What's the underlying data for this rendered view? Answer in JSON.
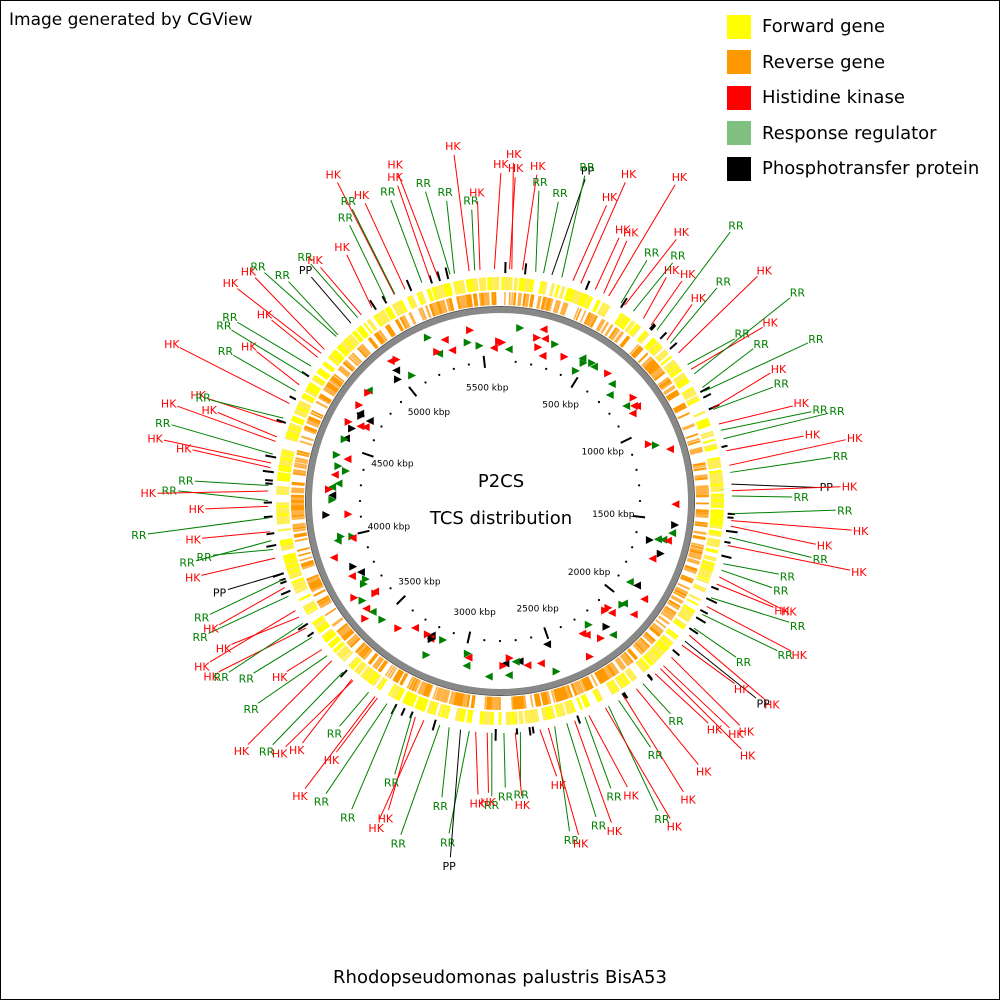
{
  "header": {
    "note": "Image generated by CGView"
  },
  "legend": {
    "items": [
      {
        "label": "Forward gene",
        "color": "#ffff00"
      },
      {
        "label": "Reverse gene",
        "color": "#ff9900"
      },
      {
        "label": "Histidine kinase",
        "color": "#ff0000"
      },
      {
        "label": "Response regulator",
        "color": "#80c080"
      },
      {
        "label": "Phosphotransfer protein",
        "color": "#000000"
      }
    ]
  },
  "map": {
    "title": "P2CS",
    "subtitle": "TCS distribution",
    "organism": "Rhodopseudomonas palustris BisA53",
    "genome_length_kbp": 5600,
    "ticks": [
      {
        "label": "500 kbp",
        "kbp": 500
      },
      {
        "label": "1000 kbp",
        "kbp": 1000
      },
      {
        "label": "1500 kbp",
        "kbp": 1500
      },
      {
        "label": "2000 kbp",
        "kbp": 2000
      },
      {
        "label": "2500 kbp",
        "kbp": 2500
      },
      {
        "label": "3000 kbp",
        "kbp": 3000
      },
      {
        "label": "3500 kbp",
        "kbp": 3500
      },
      {
        "label": "4000 kbp",
        "kbp": 4000
      },
      {
        "label": "4500 kbp",
        "kbp": 4500
      },
      {
        "label": "5000 kbp",
        "kbp": 5000
      },
      {
        "label": "5500 kbp",
        "kbp": 5500
      }
    ],
    "feature_labels": [
      {
        "text": "HK",
        "type": "HK"
      },
      {
        "text": "HK",
        "type": "HK"
      },
      {
        "text": "HK",
        "type": "HK"
      },
      {
        "text": "RR",
        "type": "RR"
      },
      {
        "text": "RR",
        "type": "RR"
      },
      {
        "text": "PP",
        "type": "PP"
      },
      {
        "text": "RR",
        "type": "RR"
      },
      {
        "text": "HK",
        "type": "HK"
      },
      {
        "text": "HK",
        "type": "HK"
      },
      {
        "text": "HK",
        "type": "HK"
      },
      {
        "text": "HK",
        "type": "HK"
      },
      {
        "text": "HK",
        "type": "HK"
      },
      {
        "text": "RR",
        "type": "RR"
      },
      {
        "text": "HK",
        "type": "HK"
      },
      {
        "text": "RR",
        "type": "RR"
      },
      {
        "text": "HK",
        "type": "HK"
      },
      {
        "text": "HK",
        "type": "HK"
      },
      {
        "text": "RR",
        "type": "RR"
      },
      {
        "text": "HK",
        "type": "HK"
      },
      {
        "text": "RR",
        "type": "RR"
      },
      {
        "text": "HK",
        "type": "HK"
      },
      {
        "text": "RR",
        "type": "RR"
      },
      {
        "text": "HK",
        "type": "HK"
      },
      {
        "text": "RR",
        "type": "RR"
      },
      {
        "text": "RR",
        "type": "RR"
      },
      {
        "text": "RR",
        "type": "RR"
      },
      {
        "text": "HK",
        "type": "HK"
      },
      {
        "text": "RR",
        "type": "RR"
      },
      {
        "text": "HK",
        "type": "HK"
      },
      {
        "text": "RR",
        "type": "RR"
      },
      {
        "text": "RR",
        "type": "RR"
      },
      {
        "text": "HK",
        "type": "HK"
      },
      {
        "text": "HK",
        "type": "HK"
      },
      {
        "text": "RR",
        "type": "RR"
      },
      {
        "text": "PP",
        "type": "PP"
      },
      {
        "text": "HK",
        "type": "HK"
      },
      {
        "text": "RR",
        "type": "RR"
      },
      {
        "text": "RR",
        "type": "RR"
      },
      {
        "text": "HK",
        "type": "HK"
      },
      {
        "text": "HK",
        "type": "HK"
      },
      {
        "text": "RR",
        "type": "RR"
      },
      {
        "text": "HK",
        "type": "HK"
      },
      {
        "text": "RR",
        "type": "RR"
      },
      {
        "text": "RR",
        "type": "RR"
      },
      {
        "text": "HK",
        "type": "HK"
      },
      {
        "text": "HK",
        "type": "HK"
      },
      {
        "text": "RR",
        "type": "RR"
      },
      {
        "text": "HK",
        "type": "HK"
      },
      {
        "text": "RR",
        "type": "RR"
      },
      {
        "text": "RR",
        "type": "RR"
      },
      {
        "text": "HK",
        "type": "HK"
      },
      {
        "text": "PP",
        "type": "PP"
      },
      {
        "text": "HK",
        "type": "HK"
      },
      {
        "text": "HK",
        "type": "HK"
      },
      {
        "text": "HK",
        "type": "HK"
      },
      {
        "text": "HK",
        "type": "HK"
      },
      {
        "text": "HK",
        "type": "HK"
      },
      {
        "text": "RR",
        "type": "RR"
      },
      {
        "text": "HK",
        "type": "HK"
      },
      {
        "text": "HK",
        "type": "HK"
      },
      {
        "text": "RR",
        "type": "RR"
      },
      {
        "text": "RR",
        "type": "RR"
      },
      {
        "text": "HK",
        "type": "HK"
      },
      {
        "text": "HK",
        "type": "HK"
      },
      {
        "text": "RR",
        "type": "RR"
      },
      {
        "text": "HK",
        "type": "HK"
      },
      {
        "text": "RR",
        "type": "RR"
      },
      {
        "text": "RR",
        "type": "RR"
      },
      {
        "text": "HK",
        "type": "HK"
      },
      {
        "text": "HK",
        "type": "HK"
      },
      {
        "text": "RR",
        "type": "RR"
      },
      {
        "text": "HK",
        "type": "HK"
      },
      {
        "text": "RR",
        "type": "RR"
      },
      {
        "text": "RR",
        "type": "RR"
      },
      {
        "text": "HK",
        "type": "HK"
      },
      {
        "text": "HK",
        "type": "HK"
      },
      {
        "text": "RR",
        "type": "RR"
      },
      {
        "text": "PP",
        "type": "PP"
      },
      {
        "text": "RR",
        "type": "RR"
      },
      {
        "text": "RR",
        "type": "RR"
      },
      {
        "text": "HK",
        "type": "HK"
      },
      {
        "text": "HK",
        "type": "HK"
      },
      {
        "text": "RR",
        "type": "RR"
      },
      {
        "text": "RR",
        "type": "RR"
      },
      {
        "text": "RR",
        "type": "RR"
      },
      {
        "text": "HK",
        "type": "HK"
      },
      {
        "text": "HK",
        "type": "HK"
      },
      {
        "text": "RR",
        "type": "RR"
      },
      {
        "text": "HK",
        "type": "HK"
      },
      {
        "text": "HK",
        "type": "HK"
      },
      {
        "text": "RR",
        "type": "RR"
      },
      {
        "text": "HK",
        "type": "HK"
      },
      {
        "text": "RR",
        "type": "RR"
      },
      {
        "text": "HK",
        "type": "HK"
      },
      {
        "text": "RR",
        "type": "RR"
      },
      {
        "text": "HK",
        "type": "HK"
      },
      {
        "text": "RR",
        "type": "RR"
      },
      {
        "text": "HK",
        "type": "HK"
      },
      {
        "text": "HK",
        "type": "HK"
      },
      {
        "text": "RR",
        "type": "RR"
      },
      {
        "text": "HK",
        "type": "HK"
      },
      {
        "text": "RR",
        "type": "RR"
      },
      {
        "text": "PP",
        "type": "PP"
      },
      {
        "text": "HK",
        "type": "HK"
      },
      {
        "text": "RR",
        "type": "RR"
      },
      {
        "text": "RR",
        "type": "RR"
      },
      {
        "text": "HK",
        "type": "HK"
      },
      {
        "text": "RR",
        "type": "RR"
      },
      {
        "text": "HK",
        "type": "HK"
      },
      {
        "text": "RR",
        "type": "RR"
      },
      {
        "text": "HK",
        "type": "HK"
      },
      {
        "text": "RR",
        "type": "RR"
      },
      {
        "text": "HK",
        "type": "HK"
      },
      {
        "text": "HK",
        "type": "HK"
      },
      {
        "text": "RR",
        "type": "RR"
      },
      {
        "text": "HK",
        "type": "HK"
      },
      {
        "text": "HK",
        "type": "HK"
      },
      {
        "text": "HK",
        "type": "HK"
      },
      {
        "text": "RR",
        "type": "RR"
      },
      {
        "text": "HK",
        "type": "HK"
      },
      {
        "text": "RR",
        "type": "RR"
      },
      {
        "text": "HK",
        "type": "HK"
      },
      {
        "text": "RR",
        "type": "RR"
      },
      {
        "text": "RR",
        "type": "RR"
      },
      {
        "text": "HK",
        "type": "HK"
      },
      {
        "text": "HK",
        "type": "HK"
      },
      {
        "text": "HK",
        "type": "HK"
      },
      {
        "text": "RR",
        "type": "RR"
      },
      {
        "text": "RR",
        "type": "RR"
      },
      {
        "text": "PP",
        "type": "PP"
      },
      {
        "text": "RR",
        "type": "RR"
      },
      {
        "text": "HK",
        "type": "HK"
      },
      {
        "text": "HK",
        "type": "HK"
      },
      {
        "text": "RR",
        "type": "RR"
      },
      {
        "text": "HK",
        "type": "HK"
      },
      {
        "text": "RR",
        "type": "RR"
      },
      {
        "text": "HK",
        "type": "HK"
      },
      {
        "text": "RR",
        "type": "RR"
      },
      {
        "text": "HK",
        "type": "HK"
      },
      {
        "text": "HK",
        "type": "HK"
      },
      {
        "text": "RR",
        "type": "RR"
      },
      {
        "text": "RR",
        "type": "RR"
      },
      {
        "text": "HK",
        "type": "HK"
      },
      {
        "text": "RR",
        "type": "RR"
      },
      {
        "text": "HK",
        "type": "HK"
      },
      {
        "text": "HK",
        "type": "HK"
      }
    ]
  }
}
